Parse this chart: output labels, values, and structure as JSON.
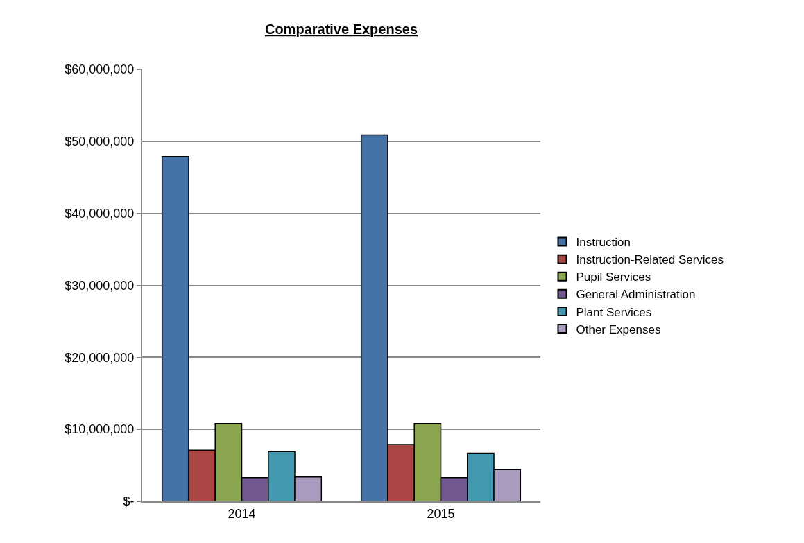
{
  "chart_data": {
    "type": "bar",
    "title": "Comparative Expenses",
    "categories": [
      "2014",
      "2015"
    ],
    "series": [
      {
        "name": "Instruction",
        "color": "#4572a7",
        "values": [
          47900000,
          50900000
        ]
      },
      {
        "name": "Instruction-Related Services",
        "color": "#aa4643",
        "values": [
          7100000,
          7900000
        ]
      },
      {
        "name": "Pupil Services",
        "color": "#89a54e",
        "values": [
          10800000,
          10800000
        ]
      },
      {
        "name": "General Administration",
        "color": "#71588f",
        "values": [
          3300000,
          3300000
        ]
      },
      {
        "name": "Plant Services",
        "color": "#4198af",
        "values": [
          6900000,
          6700000
        ]
      },
      {
        "name": "Other Expenses",
        "color": "#a99bbd",
        "values": [
          3400000,
          4400000
        ]
      }
    ],
    "ylim": [
      0,
      60000000
    ],
    "yticks": [
      {
        "value": 0,
        "label": "$-"
      },
      {
        "value": 10000000,
        "label": "$10,000,000"
      },
      {
        "value": 20000000,
        "label": "$20,000,000"
      },
      {
        "value": 30000000,
        "label": "$30,000,000"
      },
      {
        "value": 40000000,
        "label": "$40,000,000"
      },
      {
        "value": 50000000,
        "label": "$50,000,000"
      },
      {
        "value": 60000000,
        "label": "$60,000,000"
      }
    ],
    "grid": "y",
    "legend": "right"
  }
}
